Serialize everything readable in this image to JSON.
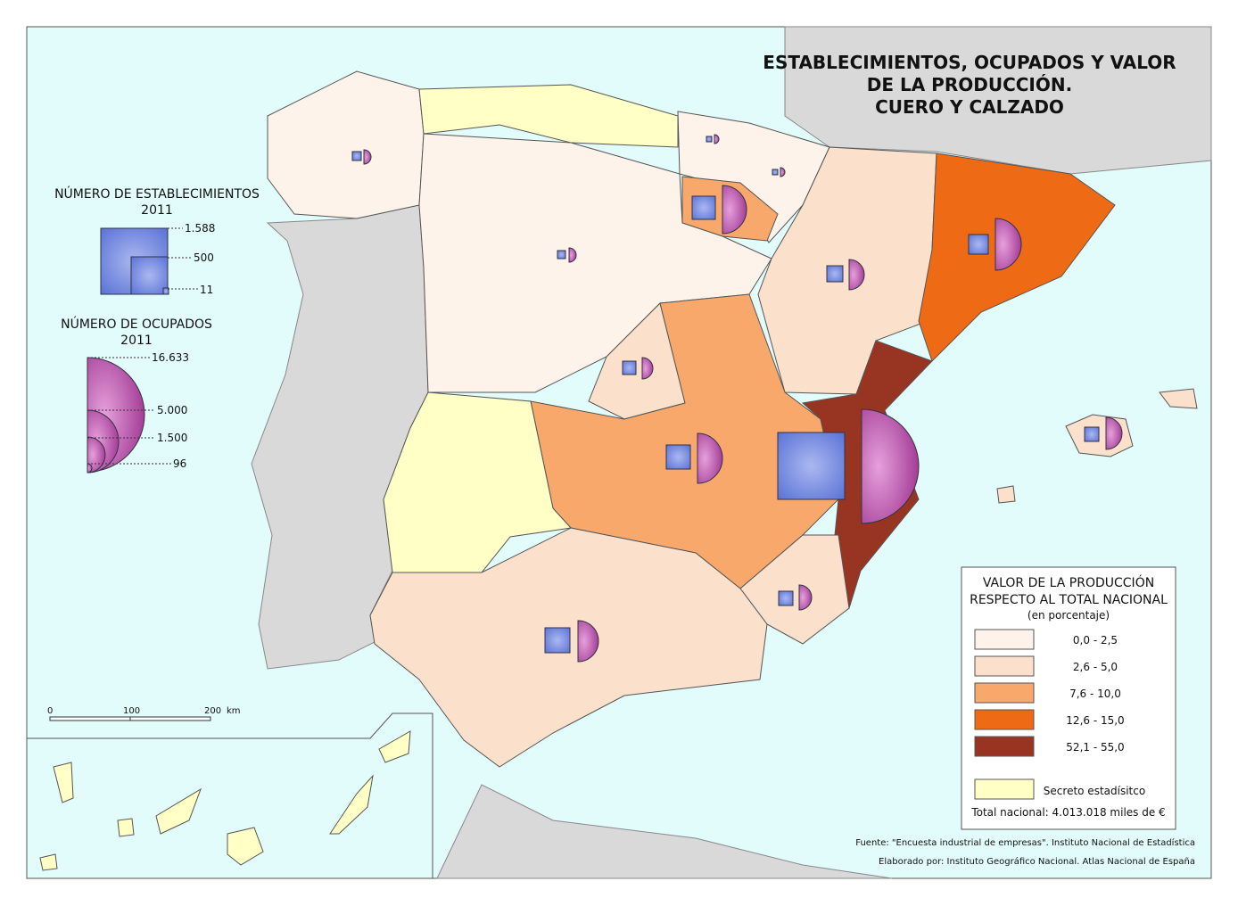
{
  "title": [
    "ESTABLECIMIENTOS, OCUPADOS Y VALOR",
    "DE LA PRODUCCIÓN.",
    "CUERO Y CALZADO"
  ],
  "legend_establecimientos": {
    "title": [
      "NÚMERO DE ESTABLECIMIENTOS",
      "2011"
    ],
    "labels": [
      "1.588",
      "500",
      "11"
    ]
  },
  "legend_ocupados": {
    "title": [
      "NÚMERO DE OCUPADOS",
      "2011"
    ],
    "labels": [
      "16.633",
      "5.000",
      "1.500",
      "96"
    ]
  },
  "legend_valor": {
    "title": [
      "VALOR DE LA PRODUCCIÓN",
      "RESPECTO AL TOTAL NACIONAL",
      "(en porcentaje)"
    ],
    "classes": [
      {
        "label": "0,0 - 2,5",
        "color": "#fdf3ea"
      },
      {
        "label": "2,6 - 5,0",
        "color": "#fbe0cc"
      },
      {
        "label": "7,6 - 10,0",
        "color": "#f9a86c"
      },
      {
        "label": "12,6 - 15,0",
        "color": "#ef6a14"
      },
      {
        "label": "52,1 - 55,0",
        "color": "#973522"
      }
    ],
    "secret": {
      "label": "Secreto estadísitco",
      "color": "#ffffc6"
    },
    "total": "Total nacional: 4.013.018 miles de €"
  },
  "scale": {
    "labels": [
      "0",
      "100",
      "200"
    ],
    "unit": "km"
  },
  "source": [
    "Fuente: \"Encuesta industrial de empresas\". Instituto Nacional de Estadística",
    "Elaborado por: Instituto Geográfico Nacional. Atlas Nacional de España"
  ]
}
